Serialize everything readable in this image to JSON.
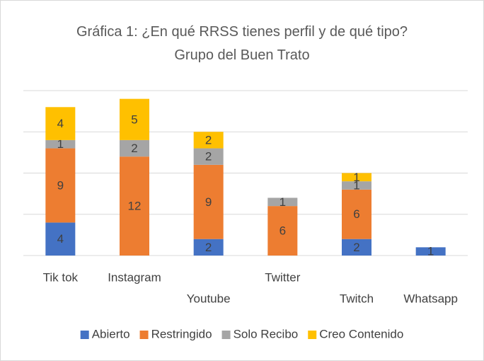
{
  "chart_data": {
    "type": "stacked_bar",
    "title": "Gráfica 1: ¿En qué RRSS tienes perfil y de qué tipo? Grupo del Buen Trato",
    "categories": [
      "Tik tok",
      "Instagram",
      "Youtube",
      "Twitter",
      "Twitch",
      "Whatsapp"
    ],
    "series": [
      {
        "name": "Abierto",
        "color": "#4472c4",
        "values": [
          4,
          0,
          2,
          0,
          2,
          1
        ]
      },
      {
        "name": "Restringido",
        "color": "#ed7d31",
        "values": [
          9,
          12,
          9,
          6,
          6,
          0
        ]
      },
      {
        "name": "Solo Recibo",
        "color": "#a5a5a5",
        "values": [
          1,
          2,
          2,
          1,
          1,
          0
        ]
      },
      {
        "name": "Creo Contenido",
        "color": "#ffc000",
        "values": [
          4,
          5,
          2,
          0,
          1,
          0
        ]
      }
    ],
    "ylim": [
      0,
      20
    ],
    "yticks": [
      0,
      5,
      10,
      15,
      20
    ],
    "grid": true,
    "legend": "bottom"
  }
}
